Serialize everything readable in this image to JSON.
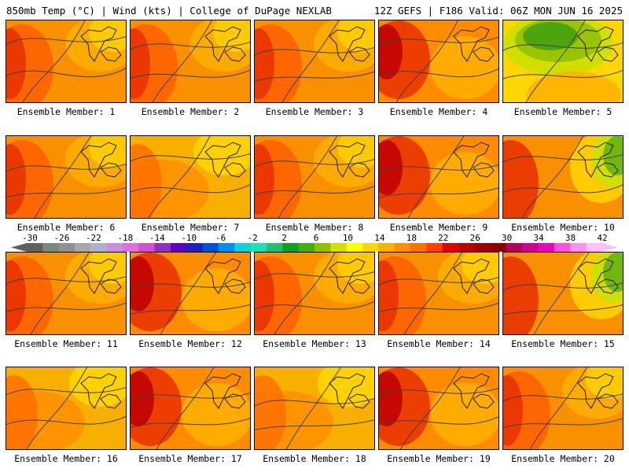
{
  "header": {
    "left_text": "850mb Temp (°C) | Wind (kts) | College of DuPage NEXLAB",
    "right_text": "12Z GEFS | F186 Valid: 06Z MON JUN 16 2025"
  },
  "colorbar": {
    "tick_labels": [
      "-30",
      "-26",
      "-22",
      "-18",
      "-14",
      "-10",
      "-6",
      "-2",
      "2",
      "6",
      "10",
      "14",
      "18",
      "22",
      "26",
      "30",
      "34",
      "38",
      "42"
    ],
    "colors": [
      "#606060",
      "#788a78",
      "#909090",
      "#a8a8a8",
      "#b0b0c8",
      "#c890e0",
      "#e070e0",
      "#d050d0",
      "#9030c0",
      "#6000c0",
      "#2020c0",
      "#0050e0",
      "#0090f0",
      "#10d0e0",
      "#20e0b0",
      "#20c070",
      "#10a020",
      "#40b010",
      "#90c000",
      "#d0e000",
      "#ffff00",
      "#ffd700",
      "#ffb000",
      "#ff9000",
      "#ff7000",
      "#ff4000",
      "#e00000",
      "#c00000",
      "#a00000",
      "#900000",
      "#b00060",
      "#d00090",
      "#f000c0",
      "#ff50e0",
      "#ff90f0",
      "#ffc0f8"
    ]
  },
  "members": [
    {
      "label": "Ensemble Member: 1",
      "scheme": 1
    },
    {
      "label": "Ensemble Member: 2",
      "scheme": 1
    },
    {
      "label": "Ensemble Member: 3",
      "scheme": 1
    },
    {
      "label": "Ensemble Member: 4",
      "scheme": 2
    },
    {
      "label": "Ensemble Member: 5",
      "scheme": 4
    },
    {
      "label": "Ensemble Member: 6",
      "scheme": 1
    },
    {
      "label": "Ensemble Member: 7",
      "scheme": 0
    },
    {
      "label": "Ensemble Member: 8",
      "scheme": 1
    },
    {
      "label": "Ensemble Member: 9",
      "scheme": 2
    },
    {
      "label": "Ensemble Member: 10",
      "scheme": 3
    },
    {
      "label": "Ensemble Member: 11",
      "scheme": 1
    },
    {
      "label": "Ensemble Member: 12",
      "scheme": 2
    },
    {
      "label": "Ensemble Member: 13",
      "scheme": 1
    },
    {
      "label": "Ensemble Member: 14",
      "scheme": 1
    },
    {
      "label": "Ensemble Member: 15",
      "scheme": 3
    },
    {
      "label": "Ensemble Member: 16",
      "scheme": 0
    },
    {
      "label": "Ensemble Member: 17",
      "scheme": 2
    },
    {
      "label": "Ensemble Member: 18",
      "scheme": 0
    },
    {
      "label": "Ensemble Member: 19",
      "scheme": 2
    },
    {
      "label": "Ensemble Member: 20",
      "scheme": 1
    }
  ]
}
